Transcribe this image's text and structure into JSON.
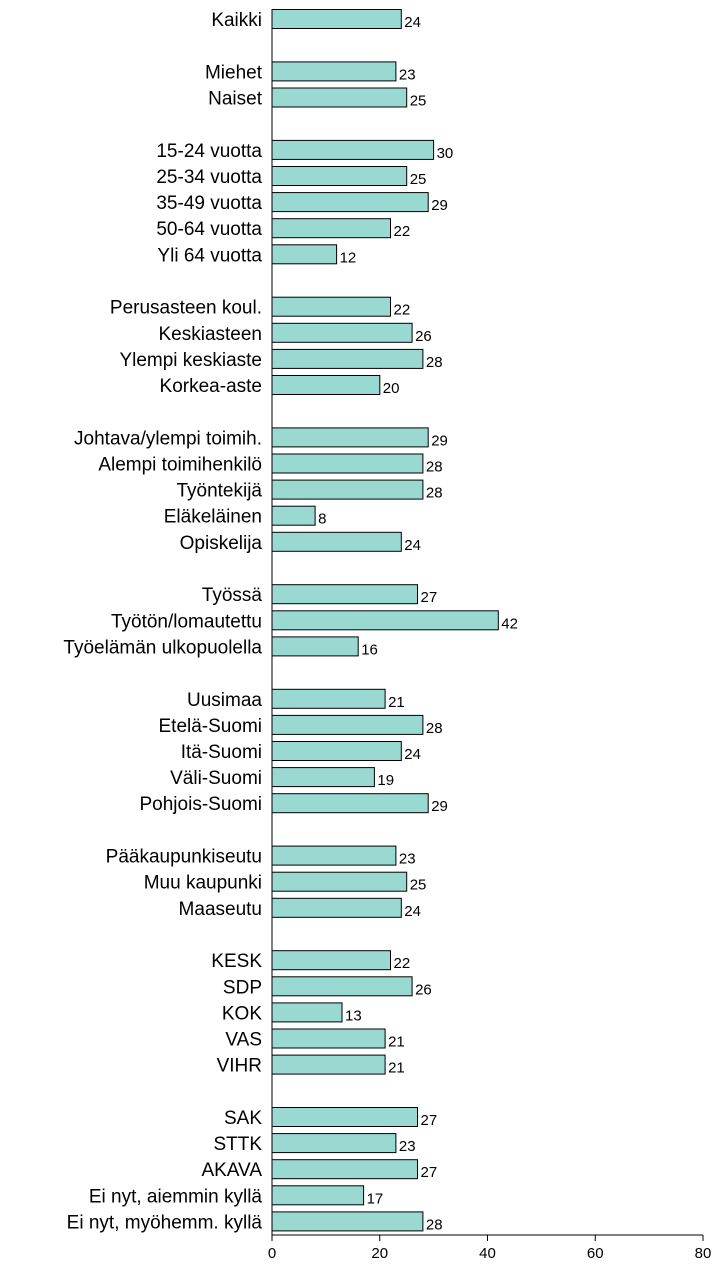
{
  "chart_data": {
    "type": "bar",
    "orientation": "horizontal",
    "categories": [
      "Kaikki",
      "Miehet",
      "Naiset",
      "15-24 vuotta",
      "25-34 vuotta",
      "35-49 vuotta",
      "50-64 vuotta",
      "Yli 64 vuotta",
      "Perusasteen koul.",
      "Keskiasteen",
      "Ylempi keskiaste",
      "Korkea-aste",
      "Johtava/ylempi toimih.",
      "Alempi toimihenkilö",
      "Työntekijä",
      "Eläkeläinen",
      "Opiskelija",
      "Työssä",
      "Työtön/lomautettu",
      "Työelämän ulkopuolella",
      "Uusimaa",
      "Etelä-Suomi",
      "Itä-Suomi",
      "Väli-Suomi",
      "Pohjois-Suomi",
      "Pääkaupunkiseutu",
      "Muu kaupunki",
      "Maaseutu",
      "KESK",
      "SDP",
      "KOK",
      "VAS",
      "VIHR",
      "SAK",
      "STTK",
      "AKAVA",
      "Ei nyt, aiemmin kyllä",
      "Ei nyt, myöhemm. kyllä"
    ],
    "values": [
      24,
      23,
      25,
      30,
      25,
      29,
      22,
      12,
      22,
      26,
      28,
      20,
      29,
      28,
      28,
      8,
      24,
      27,
      42,
      16,
      21,
      28,
      24,
      19,
      29,
      23,
      25,
      24,
      22,
      26,
      13,
      21,
      21,
      27,
      23,
      27,
      17,
      28
    ],
    "groups": [
      1,
      2,
      5,
      4,
      5,
      3,
      5,
      3,
      5,
      5
    ],
    "xlim": [
      0,
      80
    ],
    "xticks": [
      0,
      20,
      40,
      60,
      80
    ],
    "xtick_labels": [
      "0",
      "20",
      "40",
      "60",
      "80"
    ],
    "title": "",
    "xlabel": "",
    "ylabel": "",
    "grid": false,
    "legend": "none",
    "bar_color": "#99d9d2",
    "bar_edge_color": "#000000"
  }
}
